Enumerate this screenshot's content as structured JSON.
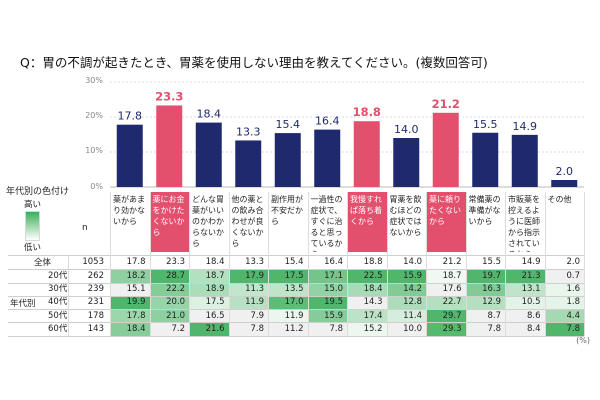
{
  "title": "Q：胃の不調が起きたとき、胃薬を使用しない理由を教えてください。(複数回答可)",
  "n_label": "n",
  "unit": "(%)",
  "legend": {
    "title": "年代別の色付け",
    "high": "高い",
    "low": "低い"
  },
  "group_label": "年代別",
  "colors": {
    "bar": "#1f2a6e",
    "highlight": "#e2506d",
    "heat": "#3cae5a"
  },
  "chart_data": {
    "type": "bar",
    "ylim": [
      0,
      30
    ],
    "y_ticks": [
      "0%",
      "10%",
      "20%",
      "30%"
    ],
    "highlight_indices": [
      1,
      6,
      8
    ],
    "categories": [
      "薬があまり効かないから",
      "薬にお金をかけたくないから",
      "どんな胃薬がいいのかわからないから",
      "他の薬との飲み合わせが良くないから",
      "副作用が不安だから",
      "一過性の症状で、すぐに治ると思っているから",
      "我慢すれば落ち着くから",
      "胃薬を飲むほどの症状ではないから",
      "薬に頼りたくないから",
      "常備薬の準備がないから",
      "市販薬を控えるように医師から指示されているから",
      "その他"
    ],
    "values": [
      17.8,
      23.3,
      18.4,
      13.3,
      15.4,
      16.4,
      18.8,
      14.0,
      21.2,
      15.5,
      14.9,
      2.0
    ],
    "value_labels": [
      "17.8",
      "23.3",
      "18.4",
      "13.3",
      "15.4",
      "16.4",
      "18.8",
      "14.0",
      "21.2",
      "15.5",
      "14.9",
      "2.0"
    ]
  },
  "table": {
    "total": {
      "label": "全体",
      "n": "1053",
      "values": [
        "17.8",
        "23.3",
        "18.4",
        "13.3",
        "15.4",
        "16.4",
        "18.8",
        "14.0",
        "21.2",
        "15.5",
        "14.9",
        "2.0"
      ]
    },
    "rows": [
      {
        "label": "20代",
        "n": "262",
        "values": [
          "18.2",
          "28.7",
          "18.7",
          "17.9",
          "17.5",
          "17.1",
          "22.5",
          "15.9",
          "18.7",
          "19.7",
          "21.3",
          "0.7"
        ]
      },
      {
        "label": "30代",
        "n": "239",
        "values": [
          "15.1",
          "22.2",
          "18.9",
          "11.3",
          "13.5",
          "15.0",
          "18.4",
          "14.2",
          "17.6",
          "16.3",
          "13.1",
          "1.6"
        ]
      },
      {
        "label": "40代",
        "n": "231",
        "values": [
          "19.9",
          "20.0",
          "17.5",
          "11.9",
          "17.0",
          "19.5",
          "14.3",
          "12.8",
          "22.7",
          "12.9",
          "10.5",
          "1.8"
        ]
      },
      {
        "label": "50代",
        "n": "178",
        "values": [
          "17.8",
          "21.0",
          "16.5",
          "7.9",
          "11.9",
          "15.9",
          "17.4",
          "11.4",
          "29.7",
          "8.7",
          "8.6",
          "4.4"
        ]
      },
      {
        "label": "60代",
        "n": "143",
        "values": [
          "18.4",
          "7.2",
          "21.6",
          "7.8",
          "11.2",
          "7.8",
          "15.2",
          "10.0",
          "29.3",
          "7.8",
          "8.4",
          "7.8"
        ]
      }
    ]
  }
}
